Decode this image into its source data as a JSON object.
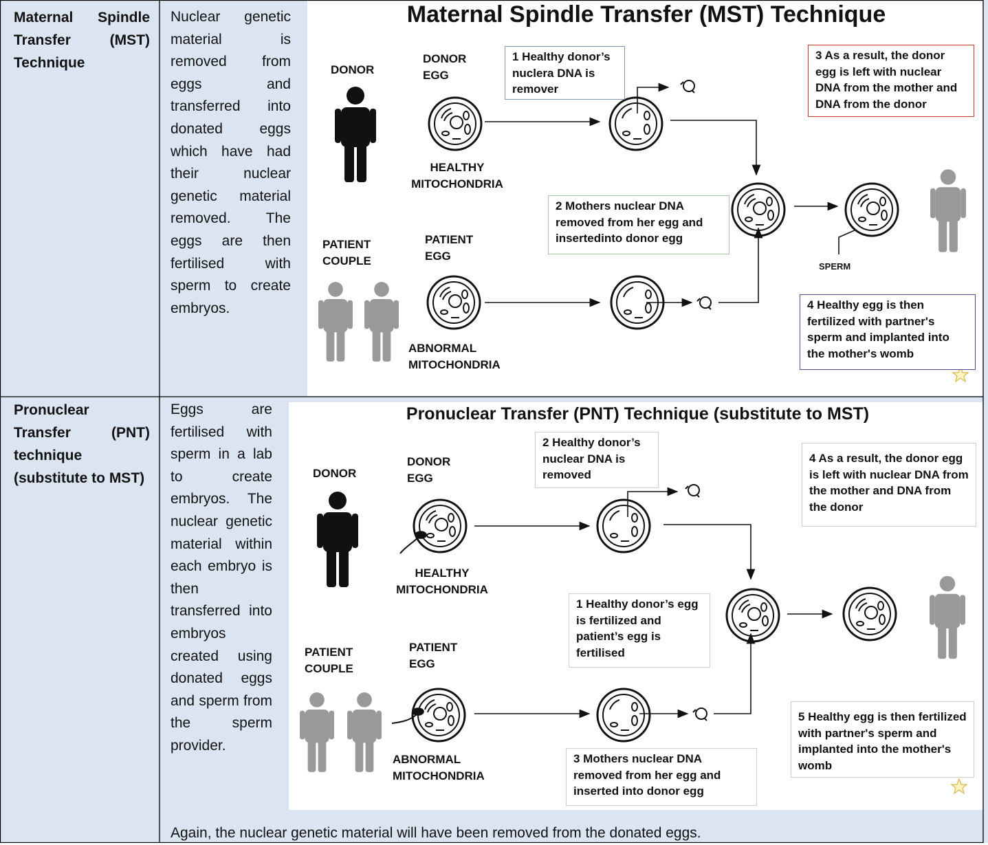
{
  "table": {
    "rows": [
      {
        "label": "Maternal Spindle Transfer (MST) Technique",
        "description": "Nuclear genetic material is removed from eggs and transferred into donated eggs which have had their nuclear genetic material removed. The eggs are then fertilised with sperm to create embryos.",
        "diagram": {
          "title": "Maternal Spindle Transfer (MST) Technique",
          "donor": "DONOR",
          "donor_egg": "DONOR EGG",
          "healthy": "HEALTHY MITOCHONDRIA",
          "patient_couple": "PATIENT COUPLE",
          "patient_egg": "PATIENT EGG",
          "abnormal": "ABNORMAL MITOCHONDRIA",
          "sperm": "SPERM",
          "steps": [
            "1 Healthy donor’s nuclera DNA is remover",
            "2 Mothers nuclear DNA removed from her egg and insertedinto donor egg",
            "3 As a result, the donor egg is left with nuclear DNA from the mother and DNA from the donor",
            "4 Healthy egg is then fertilized with partner's sperm and implanted into the mother's womb"
          ]
        }
      },
      {
        "label": "Pronuclear Transfer (PNT) technique (substitute to MST)",
        "description": "Eggs are fertilised with sperm in a lab to create embryos. The nuclear genetic material within each embryo is then transferred into embryos created using donated eggs and sperm from the sperm provider.",
        "note": "Again, the nuclear genetic material will have been removed from the donated eggs.",
        "diagram": {
          "title": "Pronuclear Transfer (PNT) Technique (substitute to MST)",
          "donor": "DONOR",
          "donor_egg": "DONOR EGG",
          "healthy": "HEALTHY MITOCHONDRIA",
          "patient_couple": "PATIENT COUPLE",
          "patient_egg": "PATIENT EGG",
          "abnormal": "ABNORMAL MITOCHONDRIA",
          "steps": [
            "1 Healthy donor’s egg is fertilized and patient’s egg is fertilised",
            "2 Healthy donor’s nuclear DNA is removed",
            "3 Mothers nuclear DNA removed from her egg and inserted into donor egg",
            "4 As a result, the donor egg is left with nuclear DNA from the mother and DNA from the donor",
            "5 Healthy egg is then fertilized with partner's sperm and implanted into the mother's womb"
          ]
        }
      }
    ]
  }
}
